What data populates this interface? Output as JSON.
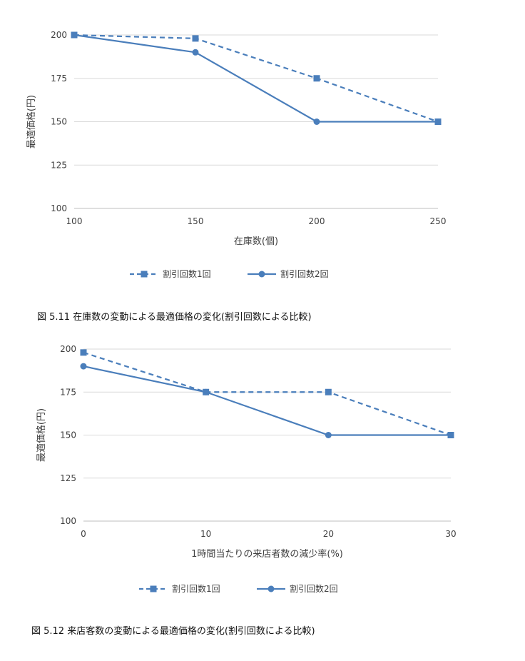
{
  "chart_data": [
    {
      "type": "line",
      "x": [
        100,
        150,
        200,
        250
      ],
      "xlim": [
        100,
        250
      ],
      "ylim": [
        100,
        200
      ],
      "xticks": [
        "100",
        "150",
        "200",
        "250"
      ],
      "yticks": [
        "100",
        "125",
        "150",
        "175",
        "200"
      ],
      "xlabel": "在庫数(個)",
      "ylabel": "最適価格(円)",
      "grid": true,
      "legend_position": "bottom",
      "caption": "図 5.11  在庫数の変動による最適価格の変化(割引回数による比較)",
      "series": [
        {
          "name": "割引回数1回",
          "values": [
            200,
            198,
            175,
            150
          ],
          "style": "dashed",
          "marker": "square",
          "color": "#4a7ebb"
        },
        {
          "name": "割引回数2回",
          "values": [
            200,
            190,
            150,
            150
          ],
          "style": "solid",
          "marker": "circle",
          "color": "#4a7ebb"
        }
      ]
    },
    {
      "type": "line",
      "x": [
        0,
        10,
        20,
        30
      ],
      "xlim": [
        0,
        30
      ],
      "ylim": [
        100,
        200
      ],
      "xticks": [
        "0",
        "10",
        "20",
        "30"
      ],
      "yticks": [
        "100",
        "125",
        "150",
        "175",
        "200"
      ],
      "xlabel": "1時間当たりの来店者数の減少率(%)",
      "ylabel": "最適価格(円)",
      "grid": true,
      "legend_position": "bottom",
      "caption": "図 5.12  来店客数の変動による最適価格の変化(割引回数による比較)",
      "series": [
        {
          "name": "割引回数1回",
          "values": [
            198,
            175,
            175,
            150
          ],
          "style": "dashed",
          "marker": "square",
          "color": "#4a7ebb"
        },
        {
          "name": "割引回数2回",
          "values": [
            190,
            175,
            150,
            150
          ],
          "style": "solid",
          "marker": "circle",
          "color": "#4a7ebb"
        }
      ]
    }
  ]
}
